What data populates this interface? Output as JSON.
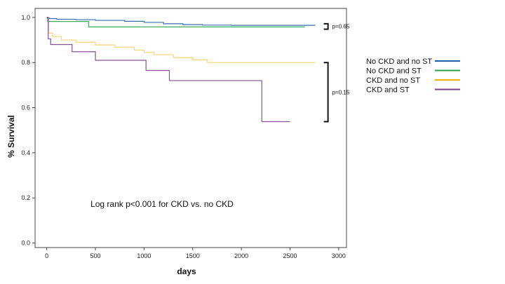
{
  "chart_data": {
    "type": "line",
    "title": "",
    "xlabel": "days",
    "ylabel": "% Survival",
    "xlim": [
      -120,
      3080
    ],
    "ylim": [
      -0.02,
      1.04
    ],
    "xticks": [
      0,
      500,
      1000,
      1500,
      2000,
      2500,
      3000
    ],
    "yticks": [
      0.0,
      0.2,
      0.4,
      0.6,
      0.8,
      1.0
    ],
    "xtick_labels": [
      "0",
      "500",
      "1000",
      "1500",
      "2000",
      "2500",
      "3000"
    ],
    "ytick_labels": [
      "0.0",
      "0.2",
      "0.4",
      "0.6",
      "0.8",
      "1.0"
    ],
    "grid": false,
    "legend_position": "right",
    "series": [
      {
        "name": "No CKD and no ST",
        "color": "#1f5fa8",
        "x": [
          0,
          5,
          30,
          100,
          300,
          500,
          800,
          1000,
          1200,
          1400,
          1600,
          1900,
          2200,
          2500,
          2760
        ],
        "y": [
          1.0,
          0.997,
          0.995,
          0.992,
          0.99,
          0.987,
          0.983,
          0.978,
          0.972,
          0.968,
          0.966,
          0.965,
          0.965,
          0.965,
          0.965
        ]
      },
      {
        "name": "No CKD and ST",
        "color": "#2aa34a",
        "x": [
          0,
          10,
          430,
          1500,
          2000,
          2650
        ],
        "y": [
          1.0,
          0.982,
          0.958,
          0.958,
          0.958,
          0.957
        ]
      },
      {
        "name": "CKD and no ST",
        "color": "#f0b400",
        "x": [
          0,
          20,
          60,
          150,
          300,
          500,
          700,
          900,
          1000,
          1100,
          1300,
          1500,
          1650,
          2000,
          2500,
          2760
        ],
        "y": [
          1.0,
          0.93,
          0.915,
          0.9,
          0.89,
          0.878,
          0.868,
          0.855,
          0.845,
          0.835,
          0.822,
          0.812,
          0.8,
          0.8,
          0.8,
          0.8
        ]
      },
      {
        "name": "CKD and ST",
        "color": "#7b3f8c",
        "x": [
          0,
          15,
          40,
          260,
          500,
          1020,
          1260,
          2210,
          2500
        ],
        "y": [
          1.0,
          0.905,
          0.88,
          0.848,
          0.81,
          0.765,
          0.72,
          0.538,
          0.538
        ]
      }
    ],
    "annotations": [
      {
        "text": "p=0.65"
      },
      {
        "text": "p=0.15"
      },
      {
        "text": "Log rank p<0.001 for CKD vs. no CKD"
      }
    ]
  }
}
